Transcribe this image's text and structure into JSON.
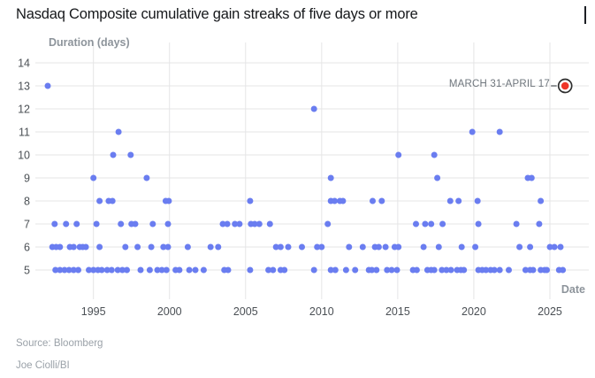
{
  "title": "Nasdaq Composite cumulative gain streaks of five days or more",
  "footer": {
    "source": "Source: Bloomberg",
    "byline": "Joe Ciolli/BI"
  },
  "colors": {
    "point": "#6a7df0",
    "highlight": "#ee3528",
    "highlight_ring": "#2e2e2e",
    "grid": "#e5e5e6",
    "tick_label": "#4b5055",
    "axis_title": "#8d949b"
  },
  "chart_data": {
    "type": "scatter",
    "title": "Nasdaq Composite cumulative gain streaks of five days or more",
    "xlabel": "Date",
    "ylabel": "Duration (days)",
    "x_ticks": [
      1995,
      2000,
      2005,
      2010,
      2015,
      2020,
      2025
    ],
    "y_ticks": [
      5,
      6,
      7,
      8,
      9,
      10,
      11,
      12,
      13,
      14
    ],
    "xlim": [
      1991.3,
      2027.5
    ],
    "ylim": [
      4.5,
      14.5
    ],
    "grid": true,
    "legend": "none",
    "highlight": {
      "x": 2026.0,
      "y": 13,
      "label": "MARCH 31-APRIL 17"
    },
    "points": [
      [
        1992.0,
        13
      ],
      [
        2009.5,
        12
      ],
      [
        1996.65,
        11
      ],
      [
        2019.9,
        11
      ],
      [
        2021.7,
        11
      ],
      [
        1996.3,
        10
      ],
      [
        1997.45,
        10
      ],
      [
        2015.05,
        10
      ],
      [
        2017.4,
        10
      ],
      [
        1995.0,
        9
      ],
      [
        1998.5,
        9
      ],
      [
        2010.6,
        9
      ],
      [
        2017.6,
        9
      ],
      [
        2023.55,
        9
      ],
      [
        2023.8,
        9
      ],
      [
        1995.4,
        8
      ],
      [
        1996.0,
        8
      ],
      [
        1996.25,
        8
      ],
      [
        1999.75,
        8
      ],
      [
        1999.95,
        8
      ],
      [
        2005.3,
        8
      ],
      [
        2010.6,
        8
      ],
      [
        2010.85,
        8
      ],
      [
        2011.2,
        8
      ],
      [
        2011.4,
        8
      ],
      [
        2013.35,
        8
      ],
      [
        2013.95,
        8
      ],
      [
        2018.45,
        8
      ],
      [
        2019.0,
        8
      ],
      [
        2020.25,
        8
      ],
      [
        2024.4,
        8
      ],
      [
        1992.45,
        7
      ],
      [
        1993.2,
        7
      ],
      [
        1993.9,
        7
      ],
      [
        1995.2,
        7
      ],
      [
        1996.8,
        7
      ],
      [
        1997.5,
        7
      ],
      [
        1997.75,
        7
      ],
      [
        1998.9,
        7
      ],
      [
        1999.9,
        7
      ],
      [
        2003.5,
        7
      ],
      [
        2003.8,
        7
      ],
      [
        2004.3,
        7
      ],
      [
        2004.6,
        7
      ],
      [
        2005.35,
        7
      ],
      [
        2005.6,
        7
      ],
      [
        2005.9,
        7
      ],
      [
        2006.6,
        7
      ],
      [
        2010.4,
        7
      ],
      [
        2016.2,
        7
      ],
      [
        2016.8,
        7
      ],
      [
        2017.2,
        7
      ],
      [
        2017.95,
        7
      ],
      [
        2020.3,
        7
      ],
      [
        2022.8,
        7
      ],
      [
        2024.3,
        7
      ],
      [
        1992.3,
        6
      ],
      [
        1992.55,
        6
      ],
      [
        1992.8,
        6
      ],
      [
        1993.45,
        6
      ],
      [
        1993.7,
        6
      ],
      [
        1994.1,
        6
      ],
      [
        1994.3,
        6
      ],
      [
        1994.5,
        6
      ],
      [
        1995.4,
        6
      ],
      [
        1997.1,
        6
      ],
      [
        1997.9,
        6
      ],
      [
        1998.8,
        6
      ],
      [
        1999.6,
        6
      ],
      [
        1999.9,
        6
      ],
      [
        2001.2,
        6
      ],
      [
        2002.7,
        6
      ],
      [
        2003.2,
        6
      ],
      [
        2007.0,
        6
      ],
      [
        2007.3,
        6
      ],
      [
        2007.8,
        6
      ],
      [
        2008.7,
        6
      ],
      [
        2009.7,
        6
      ],
      [
        2010.0,
        6
      ],
      [
        2011.8,
        6
      ],
      [
        2012.7,
        6
      ],
      [
        2013.5,
        6
      ],
      [
        2013.75,
        6
      ],
      [
        2014.2,
        6
      ],
      [
        2014.8,
        6
      ],
      [
        2015.05,
        6
      ],
      [
        2016.7,
        6
      ],
      [
        2017.7,
        6
      ],
      [
        2019.2,
        6
      ],
      [
        2020.1,
        6
      ],
      [
        2023.0,
        6
      ],
      [
        2023.7,
        6
      ],
      [
        2025.0,
        6
      ],
      [
        2025.3,
        6
      ],
      [
        2025.7,
        6
      ],
      [
        1992.5,
        5
      ],
      [
        1992.8,
        5
      ],
      [
        1993.1,
        5
      ],
      [
        1993.4,
        5
      ],
      [
        1993.7,
        5
      ],
      [
        1994.0,
        5
      ],
      [
        1994.7,
        5
      ],
      [
        1995.0,
        5
      ],
      [
        1995.3,
        5
      ],
      [
        1995.55,
        5
      ],
      [
        1995.9,
        5
      ],
      [
        1996.2,
        5
      ],
      [
        1996.6,
        5
      ],
      [
        1996.9,
        5
      ],
      [
        1997.2,
        5
      ],
      [
        1998.1,
        5
      ],
      [
        1998.7,
        5
      ],
      [
        1999.2,
        5
      ],
      [
        1999.5,
        5
      ],
      [
        1999.8,
        5
      ],
      [
        2000.4,
        5
      ],
      [
        2000.65,
        5
      ],
      [
        2001.3,
        5
      ],
      [
        2001.7,
        5
      ],
      [
        2002.25,
        5
      ],
      [
        2003.6,
        5
      ],
      [
        2003.85,
        5
      ],
      [
        2005.3,
        5
      ],
      [
        2006.5,
        5
      ],
      [
        2006.8,
        5
      ],
      [
        2007.3,
        5
      ],
      [
        2007.55,
        5
      ],
      [
        2009.5,
        5
      ],
      [
        2010.6,
        5
      ],
      [
        2010.9,
        5
      ],
      [
        2011.6,
        5
      ],
      [
        2012.2,
        5
      ],
      [
        2013.1,
        5
      ],
      [
        2013.3,
        5
      ],
      [
        2013.6,
        5
      ],
      [
        2014.3,
        5
      ],
      [
        2014.6,
        5
      ],
      [
        2014.95,
        5
      ],
      [
        2016.0,
        5
      ],
      [
        2016.25,
        5
      ],
      [
        2016.95,
        5
      ],
      [
        2017.2,
        5
      ],
      [
        2017.4,
        5
      ],
      [
        2017.9,
        5
      ],
      [
        2018.2,
        5
      ],
      [
        2018.5,
        5
      ],
      [
        2018.9,
        5
      ],
      [
        2019.15,
        5
      ],
      [
        2019.35,
        5
      ],
      [
        2020.3,
        5
      ],
      [
        2020.55,
        5
      ],
      [
        2020.8,
        5
      ],
      [
        2021.1,
        5
      ],
      [
        2021.35,
        5
      ],
      [
        2021.7,
        5
      ],
      [
        2022.3,
        5
      ],
      [
        2023.4,
        5
      ],
      [
        2023.7,
        5
      ],
      [
        2023.9,
        5
      ],
      [
        2024.4,
        5
      ],
      [
        2024.65,
        5
      ],
      [
        2024.8,
        5
      ],
      [
        2025.6,
        5
      ],
      [
        2025.85,
        5
      ]
    ]
  }
}
